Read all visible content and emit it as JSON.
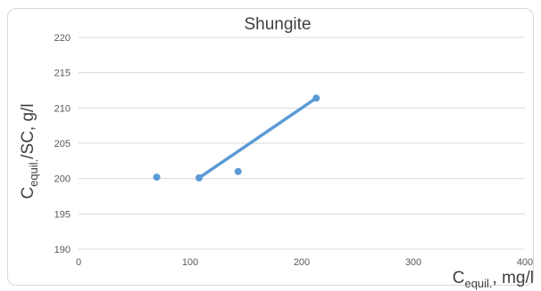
{
  "chart_data": {
    "type": "scatter",
    "title": "Shungite",
    "xlabel": {
      "main": "C",
      "sub": "equil.",
      "suffix": ", mg/l"
    },
    "ylabel": {
      "main": "C",
      "sub": "equil.",
      "suffix": "/SC, g/l"
    },
    "xlim": [
      0,
      400
    ],
    "ylim": [
      190,
      220
    ],
    "x_ticks": [
      "0",
      "100",
      "200",
      "300",
      "400"
    ],
    "y_ticks": [
      "190",
      "195",
      "200",
      "205",
      "210",
      "215",
      "220"
    ],
    "grid": "horizontal",
    "legend": "none",
    "series": [
      {
        "points": [
          {
            "x": 70,
            "y": 200.2
          },
          {
            "x": 108,
            "y": 200.1
          },
          {
            "x": 143,
            "y": 201.0
          },
          {
            "x": 213,
            "y": 211.4
          }
        ],
        "color": "#5b9bd5"
      }
    ],
    "trendline": {
      "x_start": 108,
      "x_end": 213,
      "y_start": 200.1,
      "y_end": 211.4,
      "color": "#5b9bd5"
    },
    "colors": {
      "grid": "#d9d9d9",
      "text": "#595959",
      "title": "#404040"
    }
  }
}
